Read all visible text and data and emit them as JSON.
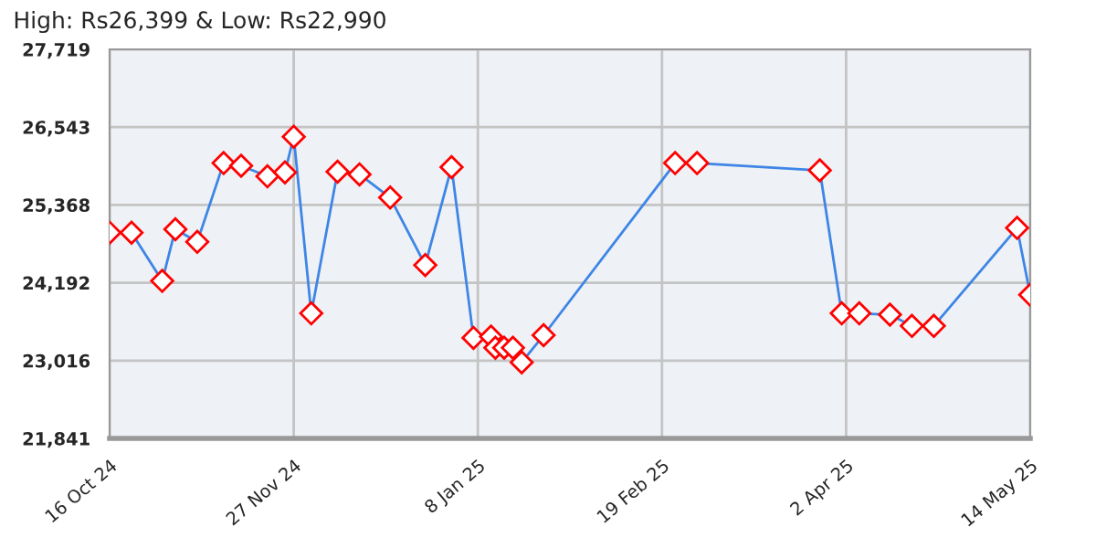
{
  "chart_data": {
    "type": "line",
    "title": "High: Rs26,399 & Low: Rs22,990",
    "x": [
      "2024-10-16",
      "2024-10-21",
      "2024-10-28",
      "2024-10-31",
      "2024-11-05",
      "2024-11-11",
      "2024-11-15",
      "2024-11-21",
      "2024-11-25",
      "2024-11-27",
      "2024-12-01",
      "2024-12-07",
      "2024-12-12",
      "2024-12-19",
      "2024-12-27",
      "2025-01-02",
      "2025-01-07",
      "2025-01-11",
      "2025-01-12",
      "2025-01-14",
      "2025-01-16",
      "2025-01-18",
      "2025-01-23",
      "2025-02-22",
      "2025-02-27",
      "2025-03-27",
      "2025-04-01",
      "2025-04-05",
      "2025-04-12",
      "2025-04-17",
      "2025-04-22",
      "2025-05-11",
      "2025-05-14"
    ],
    "series": [
      {
        "color": "#3d85e6",
        "values": [
          24950,
          24950,
          24220,
          25000,
          24810,
          26000,
          25960,
          25800,
          25860,
          26399,
          23730,
          25870,
          25830,
          25480,
          24460,
          25940,
          23360,
          23380,
          23210,
          23210,
          23210,
          22990,
          23400,
          26000,
          26000,
          25890,
          23730,
          23730,
          23710,
          23540,
          23540,
          25020,
          24010
        ]
      }
    ],
    "xlim": [
      "2024-10-16",
      "2025-05-14"
    ],
    "xticks": [
      {
        "value": "2024-10-16",
        "label": "16 Oct 24"
      },
      {
        "value": "2024-11-27",
        "label": "27 Nov 24"
      },
      {
        "value": "2025-01-08",
        "label": "8 Jan 25"
      },
      {
        "value": "2025-02-19",
        "label": "19 Feb 25"
      },
      {
        "value": "2025-04-02",
        "label": "2 Apr 25"
      },
      {
        "value": "2025-05-14",
        "label": "14 May 25"
      }
    ],
    "ylim": [
      21841,
      27719
    ],
    "yticks": [
      {
        "value": 21841,
        "label": "21,841"
      },
      {
        "value": 23016,
        "label": "23,016"
      },
      {
        "value": 24192,
        "label": "24,192"
      },
      {
        "value": 25368,
        "label": "25,368"
      },
      {
        "value": 26543,
        "label": "26,543"
      },
      {
        "value": 27719,
        "label": "27,719"
      }
    ],
    "grid": true,
    "marker": "diamond",
    "line_style": "solid"
  }
}
